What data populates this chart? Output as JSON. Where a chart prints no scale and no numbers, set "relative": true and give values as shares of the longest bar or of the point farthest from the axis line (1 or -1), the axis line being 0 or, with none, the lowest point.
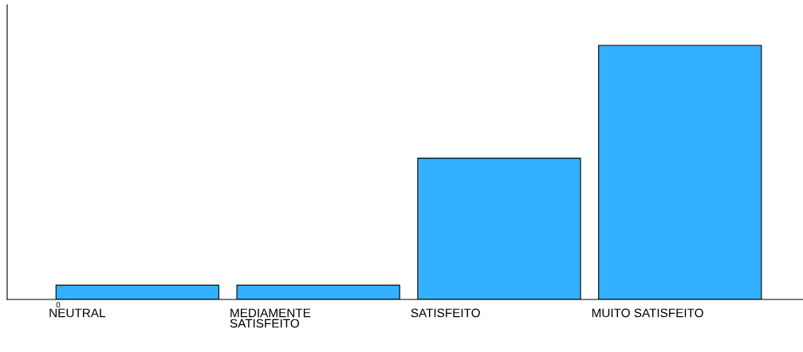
{
  "chart_data": {
    "type": "bar",
    "relative": true,
    "categories": [
      "NEUTRAL",
      "MEDIAMENTE\nSATISFEITO",
      "SATISFEITO",
      "MUITO SATISFEITO"
    ],
    "values": [
      0.056,
      0.056,
      0.556,
      1
    ],
    "color": "#33b1ff",
    "annotations": [
      "0"
    ]
  }
}
